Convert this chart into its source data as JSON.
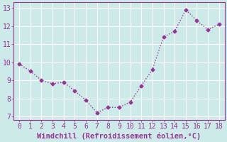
{
  "x": [
    0,
    1,
    2,
    3,
    4,
    5,
    6,
    7,
    8,
    9,
    10,
    11,
    12,
    13,
    14,
    15,
    16,
    17,
    18
  ],
  "y": [
    9.9,
    9.5,
    9.0,
    8.8,
    8.9,
    8.4,
    7.9,
    7.2,
    7.5,
    7.5,
    7.8,
    8.7,
    9.6,
    11.4,
    11.7,
    12.9,
    12.3,
    11.8,
    12.1
  ],
  "line_color": "#993399",
  "marker": "D",
  "marker_size": 2.5,
  "bg_color": "#cceae7",
  "grid_color": "#ffffff",
  "xlabel": "Windchill (Refroidissement éolien,°C)",
  "xlim": [
    -0.5,
    18.5
  ],
  "ylim": [
    6.8,
    13.3
  ],
  "yticks": [
    7,
    8,
    9,
    10,
    11,
    12,
    13
  ],
  "xticks": [
    0,
    1,
    2,
    3,
    4,
    5,
    6,
    7,
    8,
    9,
    10,
    11,
    12,
    13,
    14,
    15,
    16,
    17,
    18
  ],
  "linewidth": 1.0,
  "tick_labelsize": 7,
  "xlabel_fontsize": 7.5,
  "spine_color": "#993399"
}
